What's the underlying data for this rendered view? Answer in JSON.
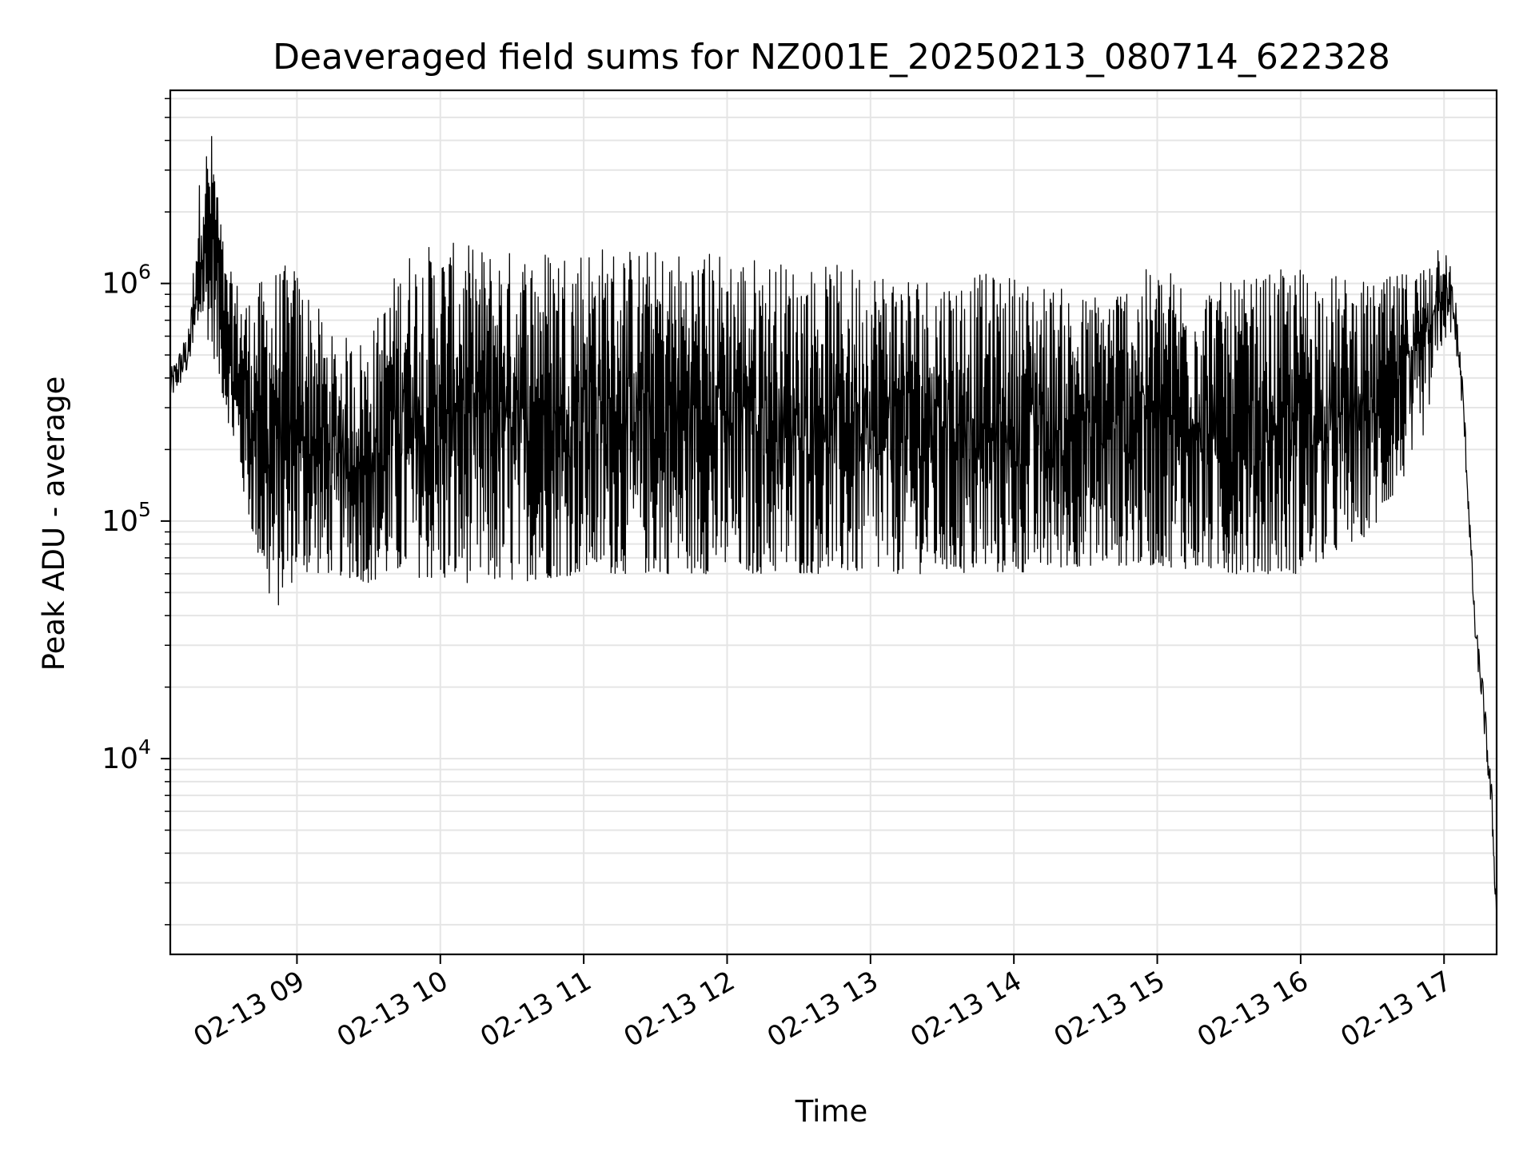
{
  "chart_data": {
    "type": "line",
    "title": "Deaveraged field sums for NZ001E_20250213_080714_622328",
    "xlabel": "Time",
    "ylabel": "Peak ADU - average",
    "yscale": "log",
    "ylim": [
      1500,
      6500000
    ],
    "xlim": [
      "2025-02-13 08:07",
      "2025-02-13 17:22"
    ],
    "grid": true,
    "line_color": "#000000",
    "grid_color": "#e5e5e5",
    "x_ticks": [
      {
        "t": "2025-02-13 09:00",
        "label": "02-13 09"
      },
      {
        "t": "2025-02-13 10:00",
        "label": "02-13 10"
      },
      {
        "t": "2025-02-13 11:00",
        "label": "02-13 11"
      },
      {
        "t": "2025-02-13 12:00",
        "label": "02-13 12"
      },
      {
        "t": "2025-02-13 13:00",
        "label": "02-13 13"
      },
      {
        "t": "2025-02-13 14:00",
        "label": "02-13 14"
      },
      {
        "t": "2025-02-13 15:00",
        "label": "02-13 15"
      },
      {
        "t": "2025-02-13 16:00",
        "label": "02-13 16"
      },
      {
        "t": "2025-02-13 17:00",
        "label": "02-13 17"
      }
    ],
    "y_ticks": [
      {
        "value": 10000,
        "base": "10",
        "exp": "4"
      },
      {
        "value": 100000,
        "base": "10",
        "exp": "5"
      },
      {
        "value": 1000000,
        "base": "10",
        "exp": "6"
      }
    ],
    "series": [
      {
        "name": "",
        "envelope": [
          {
            "t": "2025-02-13 08:07",
            "lo": 300000,
            "hi": 450000
          },
          {
            "t": "2025-02-13 08:15",
            "lo": 400000,
            "hi": 700000
          },
          {
            "t": "2025-02-13 08:20",
            "lo": 700000,
            "hi": 3500000
          },
          {
            "t": "2025-02-13 08:25",
            "lo": 500000,
            "hi": 4500000
          },
          {
            "t": "2025-02-13 08:30",
            "lo": 300000,
            "hi": 1200000
          },
          {
            "t": "2025-02-13 08:40",
            "lo": 100000,
            "hi": 900000
          },
          {
            "t": "2025-02-13 08:50",
            "lo": 40000,
            "hi": 1200000
          },
          {
            "t": "2025-02-13 09:00",
            "lo": 60000,
            "hi": 1200000
          },
          {
            "t": "2025-02-13 09:15",
            "lo": 60000,
            "hi": 600000
          },
          {
            "t": "2025-02-13 09:30",
            "lo": 55000,
            "hi": 600000
          },
          {
            "t": "2025-02-13 09:45",
            "lo": 60000,
            "hi": 1400000
          },
          {
            "t": "2025-02-13 10:00",
            "lo": 55000,
            "hi": 1500000
          },
          {
            "t": "2025-02-13 10:30",
            "lo": 55000,
            "hi": 1400000
          },
          {
            "t": "2025-02-13 11:00",
            "lo": 60000,
            "hi": 1500000
          },
          {
            "t": "2025-02-13 11:30",
            "lo": 60000,
            "hi": 1400000
          },
          {
            "t": "2025-02-13 12:00",
            "lo": 60000,
            "hi": 1400000
          },
          {
            "t": "2025-02-13 12:30",
            "lo": 60000,
            "hi": 1200000
          },
          {
            "t": "2025-02-13 13:00",
            "lo": 60000,
            "hi": 1200000
          },
          {
            "t": "2025-02-13 13:30",
            "lo": 60000,
            "hi": 1100000
          },
          {
            "t": "2025-02-13 14:00",
            "lo": 60000,
            "hi": 1100000
          },
          {
            "t": "2025-02-13 14:30",
            "lo": 65000,
            "hi": 900000
          },
          {
            "t": "2025-02-13 15:00",
            "lo": 65000,
            "hi": 1200000
          },
          {
            "t": "2025-02-13 15:30",
            "lo": 60000,
            "hi": 1000000
          },
          {
            "t": "2025-02-13 16:00",
            "lo": 60000,
            "hi": 1200000
          },
          {
            "t": "2025-02-13 16:30",
            "lo": 90000,
            "hi": 1000000
          },
          {
            "t": "2025-02-13 16:50",
            "lo": 200000,
            "hi": 1200000
          },
          {
            "t": "2025-02-13 17:00",
            "lo": 600000,
            "hi": 1700000
          },
          {
            "t": "2025-02-13 17:05",
            "lo": 500000,
            "hi": 900000
          },
          {
            "t": "2025-02-13 17:08",
            "lo": 250000,
            "hi": 400000
          },
          {
            "t": "2025-02-13 17:13",
            "lo": 30000,
            "hi": 40000
          },
          {
            "t": "2025-02-13 17:16",
            "lo": 15000,
            "hi": 24000
          },
          {
            "t": "2025-02-13 17:20",
            "lo": 5000,
            "hi": 8000
          },
          {
            "t": "2025-02-13 17:22",
            "lo": 1800,
            "hi": 2500
          }
        ]
      }
    ]
  }
}
